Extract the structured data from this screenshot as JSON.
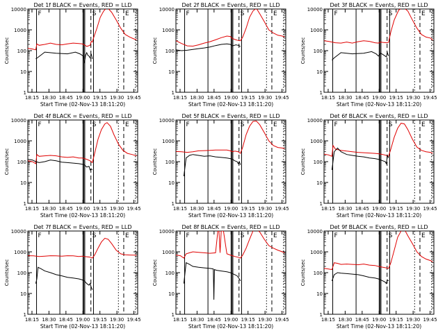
{
  "chart_data": {
    "type": "line",
    "y_scale": "log",
    "ylim": [
      1,
      10000
    ],
    "y_ticks": [
      1,
      10,
      100,
      1000,
      10000
    ],
    "y_tick_labels": [
      "1",
      "10",
      "100",
      "1000",
      "10000"
    ],
    "ylabel": "Counts/sec",
    "xlabel": "Start Time (02-Nov-13 18:11:20)",
    "x_tick_labels": [
      "18:15",
      "18:30",
      "18:45",
      "19:00",
      "19:15",
      "19:30",
      "19:45"
    ],
    "x_ticks_min": [
      3.67,
      18.67,
      33.67,
      48.67,
      63.67,
      78.67,
      93.67
    ],
    "xlim_min": [
      0,
      97
    ],
    "series_names": [
      "Events",
      "LLD"
    ],
    "series_colors": {
      "Events": "#000000",
      "LLD": "#e00000"
    },
    "markers": [
      {
        "label": "F",
        "t": 7.7,
        "style": "solid"
      },
      {
        "label": "",
        "t": 28.3,
        "style": "solid"
      },
      {
        "label": "",
        "t": 48.7,
        "style": "solid"
      },
      {
        "label": "",
        "t": 49.5,
        "style": "solid"
      },
      {
        "label": "",
        "t": 50.3,
        "style": "solid"
      },
      {
        "label": "S",
        "t": 55.7,
        "style": "dashed"
      },
      {
        "label": "",
        "t": 58.0,
        "style": "solid"
      },
      {
        "label": "",
        "t": 80.0,
        "style": "dotted"
      },
      {
        "label": "E",
        "t": 84.7,
        "style": "dashed"
      },
      {
        "label": "",
        "t": 95.0,
        "style": "dotted"
      }
    ],
    "panels": [
      {
        "title": "Det 1f BLACK = Events, RED = LLD",
        "series": [
          {
            "name": "Events",
            "t": [
              7,
              9,
              15,
              25,
              35,
              42,
              46,
              49,
              50,
              51,
              52,
              53,
              54,
              55,
              56,
              57
            ],
            "values": [
              40,
              48,
              85,
              75,
              70,
              85,
              70,
              55,
              25,
              60,
              80,
              60,
              55,
              45,
              70,
              40
            ]
          },
          {
            "name": "LLD",
            "t": [
              0,
              4,
              7,
              8,
              10,
              15,
              20,
              25,
              30,
              35,
              40,
              45,
              48,
              50,
              52,
              55,
              56,
              57,
              58,
              61,
              64,
              67,
              70,
              74,
              78,
              82,
              86,
              90,
              93,
              96
            ],
            "values": [
              130,
              120,
              110,
              210,
              180,
              200,
              230,
              200,
              190,
              210,
              230,
              220,
              210,
              190,
              160,
              180,
              280,
              260,
              400,
              1200,
              4000,
              8000,
              12000,
              7000,
              3000,
              1200,
              600,
              450,
              380,
              330
            ]
          }
        ]
      },
      {
        "title": "Det 2f BLACK = Events, RED = LLD",
        "series": [
          {
            "name": "Events",
            "t": [
              0,
              5,
              10,
              15,
              20,
              25,
              30,
              35,
              40,
              45,
              48,
              50,
              53,
              55,
              57
            ],
            "values": [
              110,
              100,
              105,
              115,
              125,
              135,
              150,
              175,
              200,
              210,
              200,
              170,
              190,
              180,
              160
            ]
          },
          {
            "name": "LLD",
            "t": [
              0,
              5,
              10,
              15,
              20,
              25,
              30,
              35,
              40,
              45,
              48,
              50,
              53,
              55,
              57,
              59,
              62,
              65,
              68,
              71,
              74,
              78,
              82,
              86,
              90,
              94,
              96
            ],
            "values": [
              300,
              220,
              170,
              165,
              190,
              230,
              270,
              330,
              420,
              500,
              480,
              380,
              330,
              310,
              300,
              450,
              1200,
              4000,
              8000,
              11000,
              6000,
              2500,
              1000,
              700,
              550,
              500,
              450
            ]
          }
        ]
      },
      {
        "title": "Det 3f BLACK = Events, RED = LLD",
        "series": [
          {
            "name": "Events",
            "t": [
              7,
              9,
              15,
              25,
              35,
              42,
              46,
              48,
              50,
              52,
              54,
              55,
              56,
              57
            ],
            "values": [
              35,
              45,
              80,
              70,
              75,
              90,
              70,
              55,
              75,
              65,
              55,
              50,
              80,
              55
            ]
          },
          {
            "name": "LLD",
            "t": [
              0,
              4,
              7,
              10,
              15,
              20,
              25,
              30,
              35,
              40,
              45,
              48,
              50,
              52,
              55,
              57,
              59,
              62,
              66,
              70,
              74,
              78,
              82,
              86,
              90,
              94,
              96
            ],
            "values": [
              300,
              280,
              260,
              240,
              230,
              260,
              230,
              270,
              300,
              280,
              240,
              230,
              260,
              250,
              240,
              250,
              800,
              3000,
              9000,
              12000,
              8000,
              3000,
              1200,
              600,
              450,
              400,
              320
            ]
          }
        ]
      },
      {
        "title": "Det 4f BLACK = Events, RED = LLD",
        "series": [
          {
            "name": "Events",
            "t": [
              0,
              4,
              7,
              10,
              15,
              20,
              25,
              30,
              35,
              40,
              45,
              48,
              50,
              52,
              54,
              55,
              56,
              57
            ],
            "values": [
              130,
              120,
              100,
              90,
              100,
              120,
              110,
              95,
              90,
              85,
              80,
              75,
              70,
              55,
              60,
              40,
              45,
              40
            ]
          },
          {
            "name": "LLD",
            "t": [
              0,
              4,
              7,
              8,
              10,
              15,
              20,
              25,
              30,
              35,
              40,
              45,
              48,
              50,
              52,
              55,
              57,
              59,
              62,
              65,
              68,
              70,
              73,
              76,
              80,
              84,
              88,
              92,
              96
            ],
            "values": [
              110,
              100,
              80,
              220,
              180,
              190,
              200,
              190,
              170,
              160,
              170,
              150,
              150,
              140,
              130,
              110,
              90,
              250,
              1200,
              3500,
              6500,
              7500,
              5000,
              2000,
              700,
              350,
              250,
              220,
              190
            ]
          }
        ]
      },
      {
        "title": "Det 5f BLACK = Events, RED = LLD",
        "series": [
          {
            "name": "Events",
            "t": [
              7,
              9,
              12,
              15,
              20,
              25,
              30,
              35,
              40,
              45,
              48,
              50,
              52,
              54,
              55,
              56,
              57
            ],
            "values": [
              20,
              150,
              200,
              220,
              200,
              180,
              190,
              170,
              160,
              150,
              140,
              130,
              110,
              100,
              80,
              100,
              70
            ]
          },
          {
            "name": "LLD",
            "t": [
              0,
              5,
              10,
              15,
              20,
              25,
              30,
              35,
              40,
              45,
              48,
              50,
              52,
              55,
              57,
              59,
              62,
              65,
              68,
              71,
              74,
              78,
              82,
              86,
              90,
              94,
              96
            ],
            "values": [
              310,
              300,
              280,
              300,
              330,
              340,
              350,
              360,
              360,
              360,
              330,
              300,
              320,
              300,
              250,
              500,
              2000,
              5000,
              8500,
              9000,
              6000,
              2500,
              1000,
              600,
              480,
              450,
              420
            ]
          }
        ]
      },
      {
        "title": "Det 6f BLACK = Events, RED = LLD",
        "series": [
          {
            "name": "Events",
            "t": [
              7,
              9,
              12,
              15,
              20,
              25,
              30,
              35,
              40,
              45,
              48,
              50,
              52,
              54,
              55,
              56,
              57
            ],
            "values": [
              40,
              300,
              450,
              300,
              220,
              200,
              180,
              170,
              150,
              140,
              130,
              120,
              110,
              100,
              80,
              200,
              150
            ]
          },
          {
            "name": "LLD",
            "t": [
              0,
              4,
              7,
              8,
              10,
              15,
              20,
              25,
              30,
              35,
              40,
              45,
              48,
              50,
              52,
              55,
              57,
              59,
              62,
              65,
              68,
              71,
              74,
              78,
              82,
              86,
              90,
              94,
              96
            ],
            "values": [
              230,
              210,
              180,
              600,
              400,
              350,
              320,
              300,
              280,
              270,
              260,
              250,
              240,
              230,
              220,
              200,
              180,
              400,
              1500,
              4000,
              7000,
              6500,
              3500,
              1200,
              500,
              350,
              300,
              280,
              250
            ]
          }
        ]
      },
      {
        "title": "Det 7f BLACK = Events, RED = LLD",
        "series": [
          {
            "name": "Events",
            "t": [
              7,
              8,
              9,
              12,
              15,
              20,
              25,
              30,
              35,
              40,
              45,
              48,
              50,
              52,
              54,
              55,
              56,
              57
            ],
            "values": [
              30,
              50,
              180,
              150,
              120,
              100,
              80,
              70,
              60,
              55,
              50,
              45,
              40,
              30,
              25,
              30,
              20,
              15
            ]
          },
          {
            "name": "LLD",
            "t": [
              0,
              5,
              10,
              15,
              20,
              25,
              30,
              35,
              40,
              45,
              48,
              50,
              52,
              55,
              57,
              59,
              62,
              65,
              68,
              71,
              74,
              78,
              82,
              86,
              90,
              94,
              96
            ],
            "values": [
              650,
              640,
              600,
              620,
              650,
              640,
              620,
              650,
              640,
              600,
              620,
              600,
              580,
              560,
              500,
              700,
              1500,
              3000,
              4500,
              4000,
              2500,
              1200,
              800,
              720,
              700,
              690,
              680
            ]
          }
        ]
      },
      {
        "title": "Det 8f BLACK = Events, RED = LLD",
        "series": [
          {
            "name": "Events",
            "t": [
              7,
              9,
              12,
              15,
              20,
              25,
              30,
              33,
              33.5,
              34,
              36,
              40,
              45,
              48,
              50,
              52,
              54,
              55,
              56,
              57
            ],
            "values": [
              30,
              300,
              250,
              200,
              180,
              170,
              160,
              150,
              5,
              140,
              130,
              120,
              110,
              100,
              90,
              80,
              70,
              60,
              50,
              40
            ]
          },
          {
            "name": "LLD",
            "t": [
              0,
              4,
              7,
              9,
              12,
              15,
              20,
              25,
              30,
              35,
              37,
              38,
              39,
              40,
              42,
              45,
              48,
              50,
              52,
              55,
              57,
              59,
              62,
              65,
              68,
              71,
              74,
              78,
              82,
              86,
              90,
              94,
              96
            ],
            "values": [
              700,
              650,
              500,
              800,
              900,
              1000,
              950,
              900,
              850,
              900,
              10000,
              10000,
              900,
              10000,
              10000,
              800,
              700,
              650,
              600,
              550,
              500,
              700,
              1500,
              4000,
              10000,
              12000,
              9000,
              4000,
              2000,
              1500,
              1200,
              1000,
              900
            ]
          }
        ]
      },
      {
        "title": "Det 9f BLACK = Events, RED = LLD",
        "series": [
          {
            "name": "Events",
            "t": [
              7,
              9,
              12,
              15,
              20,
              25,
              30,
              35,
              40,
              45,
              48,
              50,
              52,
              54,
              55,
              56,
              57
            ],
            "values": [
              40,
              80,
              100,
              95,
              90,
              85,
              80,
              70,
              60,
              55,
              50,
              45,
              40,
              35,
              30,
              45,
              40
            ]
          },
          {
            "name": "LLD",
            "t": [
              0,
              4,
              7,
              9,
              12,
              15,
              20,
              25,
              30,
              35,
              40,
              45,
              48,
              50,
              52,
              55,
              57,
              59,
              62,
              65,
              68,
              71,
              74,
              78,
              82,
              86,
              90,
              94,
              96
            ],
            "values": [
              160,
              150,
              140,
              300,
              280,
              250,
              260,
              250,
              240,
              260,
              230,
              220,
              200,
              190,
              180,
              170,
              160,
              300,
              1200,
              5000,
              10000,
              12000,
              6000,
              2500,
              1000,
              600,
              450,
              380,
              330
            ]
          }
        ]
      }
    ]
  }
}
